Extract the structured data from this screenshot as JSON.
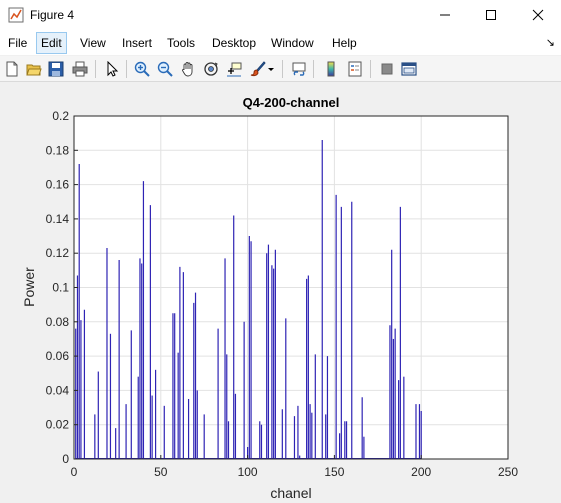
{
  "window": {
    "title": "Figure 4",
    "minimize_icon": "minimize-icon",
    "maximize_icon": "maximize-icon",
    "close_icon": "close-icon"
  },
  "menu": {
    "items": [
      {
        "label": "File"
      },
      {
        "label": "Edit"
      },
      {
        "label": "View"
      },
      {
        "label": "Insert"
      },
      {
        "label": "Tools"
      },
      {
        "label": "Desktop"
      },
      {
        "label": "Window"
      },
      {
        "label": "Help"
      }
    ],
    "active": "Edit",
    "dock_glyph": "↘"
  },
  "toolbar": {
    "buttons": [
      "new-figure-icon",
      "open-file-icon",
      "save-icon",
      "print-icon",
      "select-arrow-icon",
      "zoom-in-icon",
      "zoom-out-icon",
      "pan-hand-icon",
      "rotate-3d-icon",
      "data-cursor-icon",
      "brush-icon",
      "link-plot-icon",
      "colorbar-icon",
      "legend-icon",
      "hide-plot-tools-icon",
      "show-plot-tools-icon"
    ]
  },
  "colors": {
    "stem": "#2e23b4",
    "axes_bg": "#ffffff",
    "grid": "#e2e2e2",
    "text": "#262626"
  },
  "chart_data": {
    "type": "bar",
    "title": "Q4-200-channel",
    "xlabel": "chanel",
    "ylabel": "Power",
    "xlim": [
      0,
      250
    ],
    "ylim": [
      0,
      0.2
    ],
    "xticks": [
      "0",
      "50",
      "100",
      "150",
      "200",
      "250"
    ],
    "yticks": [
      "0",
      "0.02",
      "0.04",
      "0.06",
      "0.08",
      "0.1",
      "0.12",
      "0.14",
      "0.16",
      "0.18",
      "0.2"
    ],
    "grid": true,
    "x": [
      1,
      2,
      3,
      4,
      6,
      12,
      14,
      19,
      21,
      24,
      26,
      30,
      33,
      37,
      38,
      39,
      40,
      44,
      45,
      47,
      52,
      57,
      58,
      60,
      61,
      63,
      66,
      69,
      70,
      71,
      75,
      83,
      87,
      88,
      89,
      92,
      93,
      98,
      100,
      101,
      102,
      107,
      108,
      111,
      112,
      114,
      115,
      116,
      120,
      122,
      127,
      129,
      130,
      134,
      135,
      136,
      137,
      139,
      143,
      145,
      146,
      151,
      153,
      154,
      156,
      157,
      160,
      166,
      167,
      182,
      183,
      184,
      185,
      187,
      188,
      190,
      197,
      199,
      200
    ],
    "values": [
      0.076,
      0.107,
      0.172,
      0.081,
      0.087,
      0.026,
      0.051,
      0.123,
      0.073,
      0.018,
      0.116,
      0.032,
      0.075,
      0.048,
      0.117,
      0.114,
      0.162,
      0.148,
      0.037,
      0.052,
      0.031,
      0.085,
      0.085,
      0.062,
      0.112,
      0.109,
      0.035,
      0.091,
      0.097,
      0.04,
      0.026,
      0.076,
      0.117,
      0.061,
      0.022,
      0.142,
      0.038,
      0.08,
      0.007,
      0.13,
      0.127,
      0.022,
      0.02,
      0.12,
      0.125,
      0.113,
      0.111,
      0.122,
      0.029,
      0.082,
      0.025,
      0.031,
      0.002,
      0.105,
      0.107,
      0.032,
      0.027,
      0.061,
      0.186,
      0.026,
      0.06,
      0.154,
      0.015,
      0.147,
      0.022,
      0.022,
      0.15,
      0.036,
      0.013,
      0.078,
      0.122,
      0.07,
      0.076,
      0.046,
      0.147,
      0.048,
      0.032,
      0.032,
      0.028
    ]
  }
}
